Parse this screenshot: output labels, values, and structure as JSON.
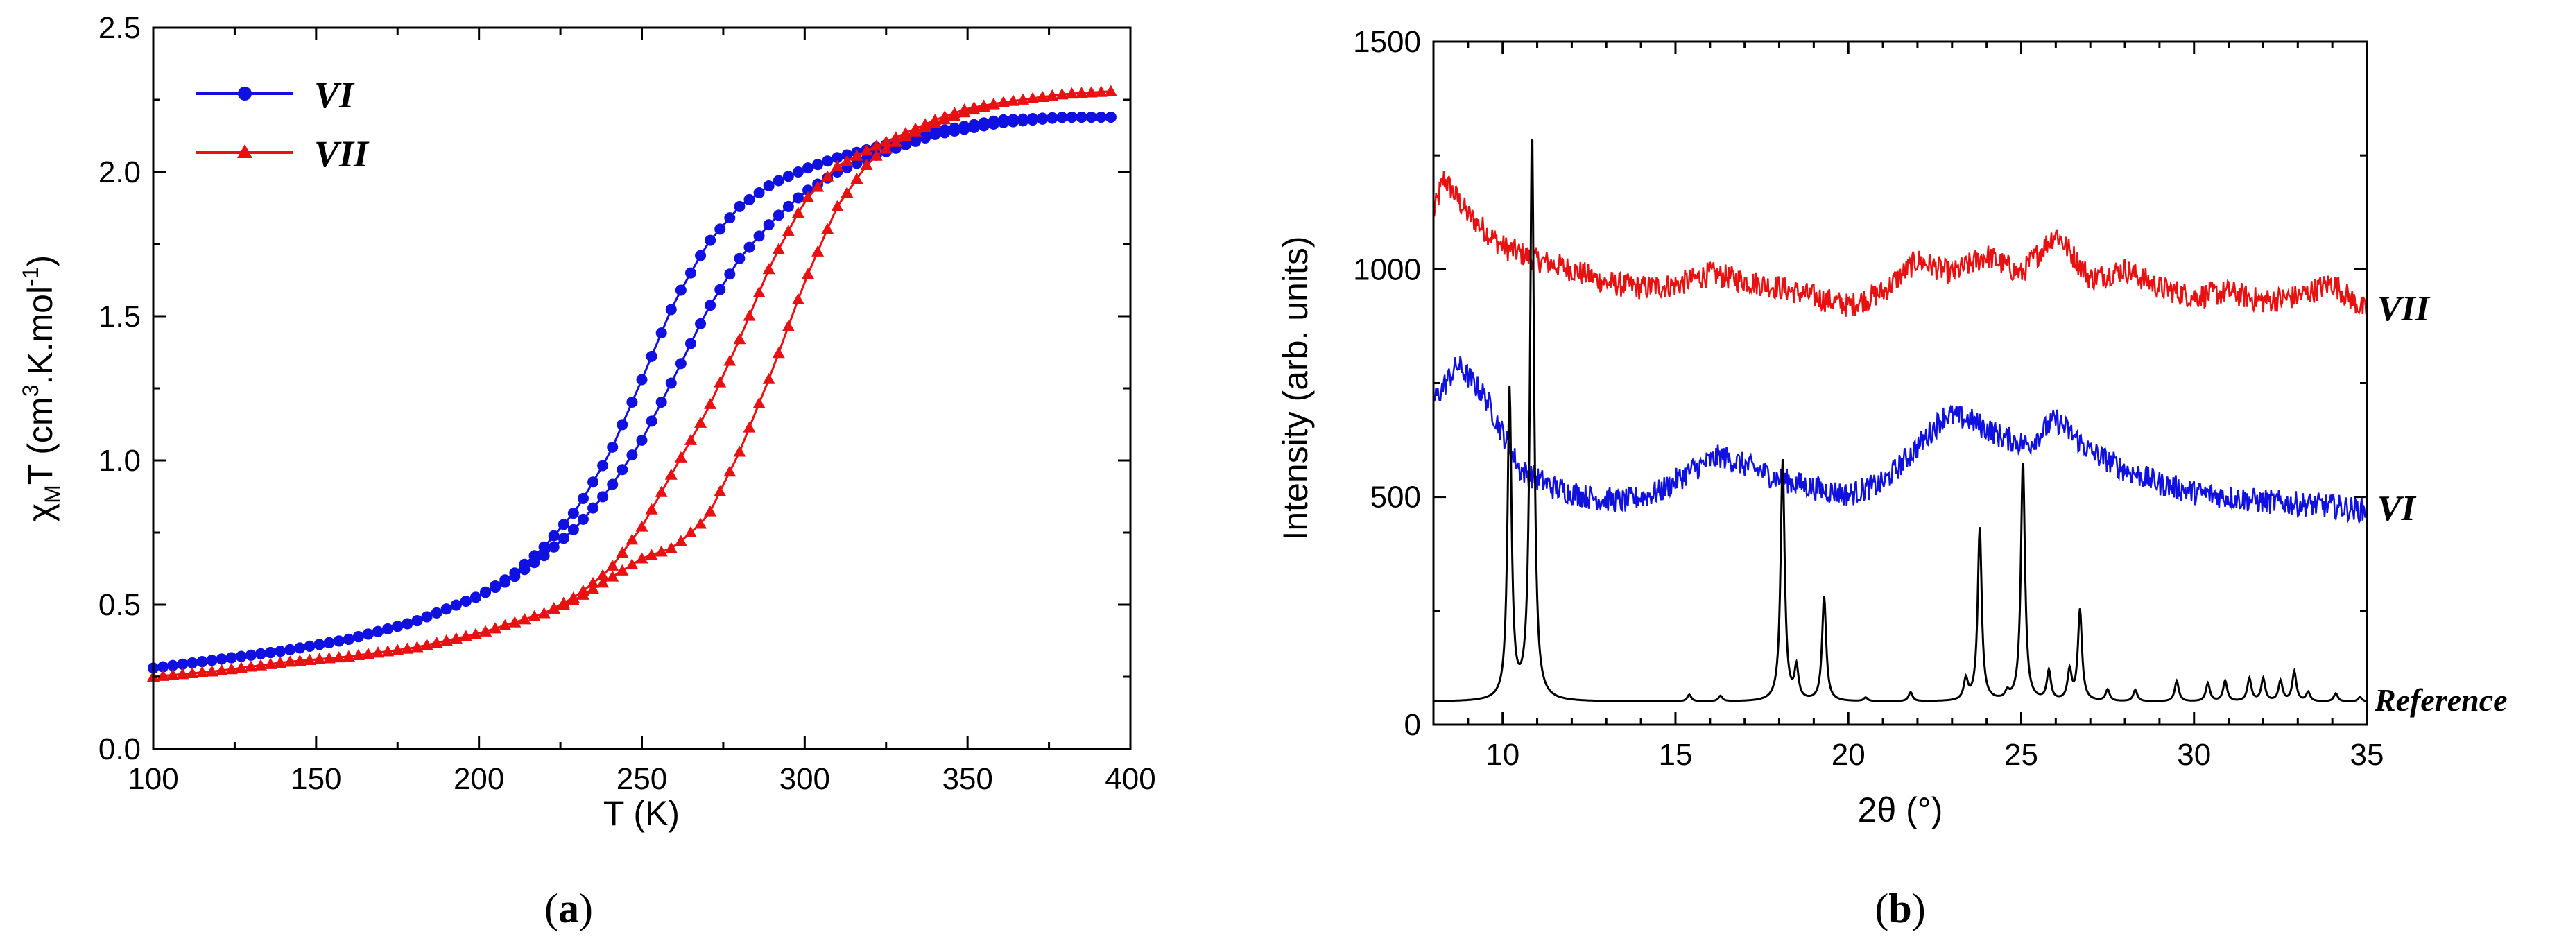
{
  "chart_data": [
    {
      "type": "line",
      "panel_label": "(a)",
      "panel_label_parts": [
        "(",
        "a",
        ")"
      ],
      "xlabel": "T (K)",
      "ylabel": "χ_M T (cm^3.K.mol^-1)",
      "ylabel_parts": {
        "chi": "χ",
        "sub": "M",
        "t": "T (cm",
        "sup1": "3",
        "mid": ".K.mol",
        "sup2": "-1",
        "end": ")"
      },
      "xlim": [
        100,
        400
      ],
      "ylim": [
        0,
        2.5
      ],
      "xticks": [
        100,
        150,
        200,
        250,
        300,
        350,
        400
      ],
      "yticks": [
        0.0,
        0.5,
        1.0,
        1.5,
        2.0,
        2.5
      ],
      "ytick_labels": [
        "0.0",
        "0.5",
        "1.0",
        "1.5",
        "2.0",
        "2.5"
      ],
      "legend_position": "top-left",
      "series": [
        {
          "name": "VI",
          "color": "#1010e0",
          "marker": "circle",
          "cooling": {
            "T": [
              100,
              120,
              140,
              160,
              180,
              200,
              210,
              220,
              230,
              240,
              250,
              260,
              270,
              280,
              290,
              300,
              310,
              320,
              330,
              340,
              350,
              360,
              380,
              395
            ],
            "chiT": [
              0.28,
              0.31,
              0.34,
              0.38,
              0.44,
              0.53,
              0.6,
              0.7,
              0.83,
              1.02,
              1.28,
              1.55,
              1.75,
              1.88,
              1.96,
              2.01,
              2.05,
              2.08,
              2.11,
              2.14,
              2.16,
              2.18,
              2.19,
              2.19
            ]
          },
          "heating": {
            "T": [
              100,
              120,
              140,
              160,
              180,
              200,
              210,
              220,
              230,
              240,
              250,
              260,
              270,
              280,
              290,
              300,
              310,
              320,
              330,
              340,
              350,
              360,
              380,
              395
            ],
            "chiT": [
              0.28,
              0.31,
              0.34,
              0.38,
              0.44,
              0.53,
              0.59,
              0.67,
              0.77,
              0.9,
              1.07,
              1.29,
              1.52,
              1.7,
              1.83,
              1.93,
              2.0,
              2.05,
              2.09,
              2.13,
              2.15,
              2.17,
              2.19,
              2.19
            ]
          }
        },
        {
          "name": "VII",
          "color": "#e81010",
          "marker": "triangle",
          "cooling": {
            "T": [
              100,
              120,
              140,
              160,
              180,
              200,
              220,
              230,
              240,
              250,
              260,
              270,
              280,
              290,
              300,
              310,
              320,
              330,
              340,
              350,
              360,
              380,
              395
            ],
            "chiT": [
              0.25,
              0.27,
              0.3,
              0.32,
              0.35,
              0.4,
              0.47,
              0.53,
              0.62,
              0.77,
              0.97,
              1.17,
              1.42,
              1.69,
              1.9,
              2.02,
              2.08,
              2.13,
              2.18,
              2.22,
              2.24,
              2.27,
              2.28
            ]
          },
          "heating": {
            "T": [
              100,
              120,
              140,
              160,
              180,
              200,
              220,
              230,
              240,
              250,
              260,
              270,
              280,
              290,
              300,
              310,
              320,
              330,
              340,
              350,
              360,
              380,
              395
            ],
            "chiT": [
              0.25,
              0.27,
              0.3,
              0.32,
              0.35,
              0.4,
              0.47,
              0.52,
              0.59,
              0.66,
              0.7,
              0.8,
              1.03,
              1.31,
              1.62,
              1.88,
              2.04,
              2.12,
              2.17,
              2.21,
              2.24,
              2.27,
              2.28
            ]
          }
        }
      ]
    },
    {
      "type": "line",
      "panel_label": "(b)",
      "panel_label_parts": [
        "(",
        "b",
        ")"
      ],
      "xlabel": "2θ (°)",
      "ylabel": "Intensity (arb. units)",
      "xlim": [
        8,
        35
      ],
      "ylim": [
        0,
        1500
      ],
      "xticks": [
        10,
        15,
        20,
        25,
        30,
        35
      ],
      "yticks": [
        0,
        500,
        1000,
        1500
      ],
      "series": [
        {
          "name": "VII",
          "color": "#e81010",
          "baseline": [
            [
              8,
              1120
            ],
            [
              8.3,
              1200
            ],
            [
              9,
              1120
            ],
            [
              10,
              1050
            ],
            [
              11,
              1020
            ],
            [
              12,
              1000
            ],
            [
              13,
              970
            ],
            [
              14,
              960
            ],
            [
              15,
              965
            ],
            [
              16,
              990
            ],
            [
              17,
              975
            ],
            [
              18,
              960
            ],
            [
              19,
              940
            ],
            [
              20,
              920
            ],
            [
              21,
              950
            ],
            [
              22,
              1020
            ],
            [
              23,
              990
            ],
            [
              24,
              1030
            ],
            [
              25,
              990
            ],
            [
              26,
              1080
            ],
            [
              27,
              980
            ],
            [
              28,
              1000
            ],
            [
              29,
              960
            ],
            [
              30,
              940
            ],
            [
              31,
              950
            ],
            [
              32,
              930
            ],
            [
              33,
              940
            ],
            [
              34,
              970
            ],
            [
              35,
              905
            ]
          ]
        },
        {
          "name": "VI",
          "color": "#1010e0",
          "baseline": [
            [
              8,
              710
            ],
            [
              8.7,
              790
            ],
            [
              9.5,
              720
            ],
            [
              10.5,
              560
            ],
            [
              11.5,
              520
            ],
            [
              12.5,
              500
            ],
            [
              13.5,
              490
            ],
            [
              14.5,
              510
            ],
            [
              15.5,
              560
            ],
            [
              16.3,
              590
            ],
            [
              17,
              570
            ],
            [
              18,
              540
            ],
            [
              19,
              520
            ],
            [
              20,
              505
            ],
            [
              21,
              530
            ],
            [
              22,
              610
            ],
            [
              22.8,
              680
            ],
            [
              23.5,
              670
            ],
            [
              24.5,
              630
            ],
            [
              25.2,
              615
            ],
            [
              26,
              670
            ],
            [
              27,
              600
            ],
            [
              28,
              560
            ],
            [
              29,
              530
            ],
            [
              30,
              510
            ],
            [
              31,
              500
            ],
            [
              32,
              490
            ],
            [
              33,
              485
            ],
            [
              34,
              480
            ],
            [
              35,
              470
            ]
          ]
        },
        {
          "name": "Reference",
          "color": "#000000",
          "baseline_value": 50,
          "peaks": [
            [
              10.2,
              730
            ],
            [
              10.85,
              1300
            ],
            [
              15.4,
              65
            ],
            [
              16.3,
              62
            ],
            [
              18.1,
              580
            ],
            [
              18.5,
              120
            ],
            [
              19.3,
              280
            ],
            [
              20.5,
              58
            ],
            [
              21.8,
              70
            ],
            [
              23.4,
              95
            ],
            [
              23.8,
              430
            ],
            [
              24.6,
              65
            ],
            [
              25.05,
              580
            ],
            [
              25.8,
              115
            ],
            [
              26.4,
              115
            ],
            [
              26.7,
              250
            ],
            [
              27.5,
              75
            ],
            [
              28.3,
              75
            ],
            [
              29.5,
              95
            ],
            [
              30.4,
              90
            ],
            [
              30.9,
              95
            ],
            [
              31.6,
              100
            ],
            [
              32.0,
              100
            ],
            [
              32.5,
              95
            ],
            [
              32.9,
              115
            ],
            [
              33.3,
              70
            ],
            [
              34.1,
              68
            ],
            [
              34.8,
              60
            ]
          ]
        }
      ]
    }
  ]
}
